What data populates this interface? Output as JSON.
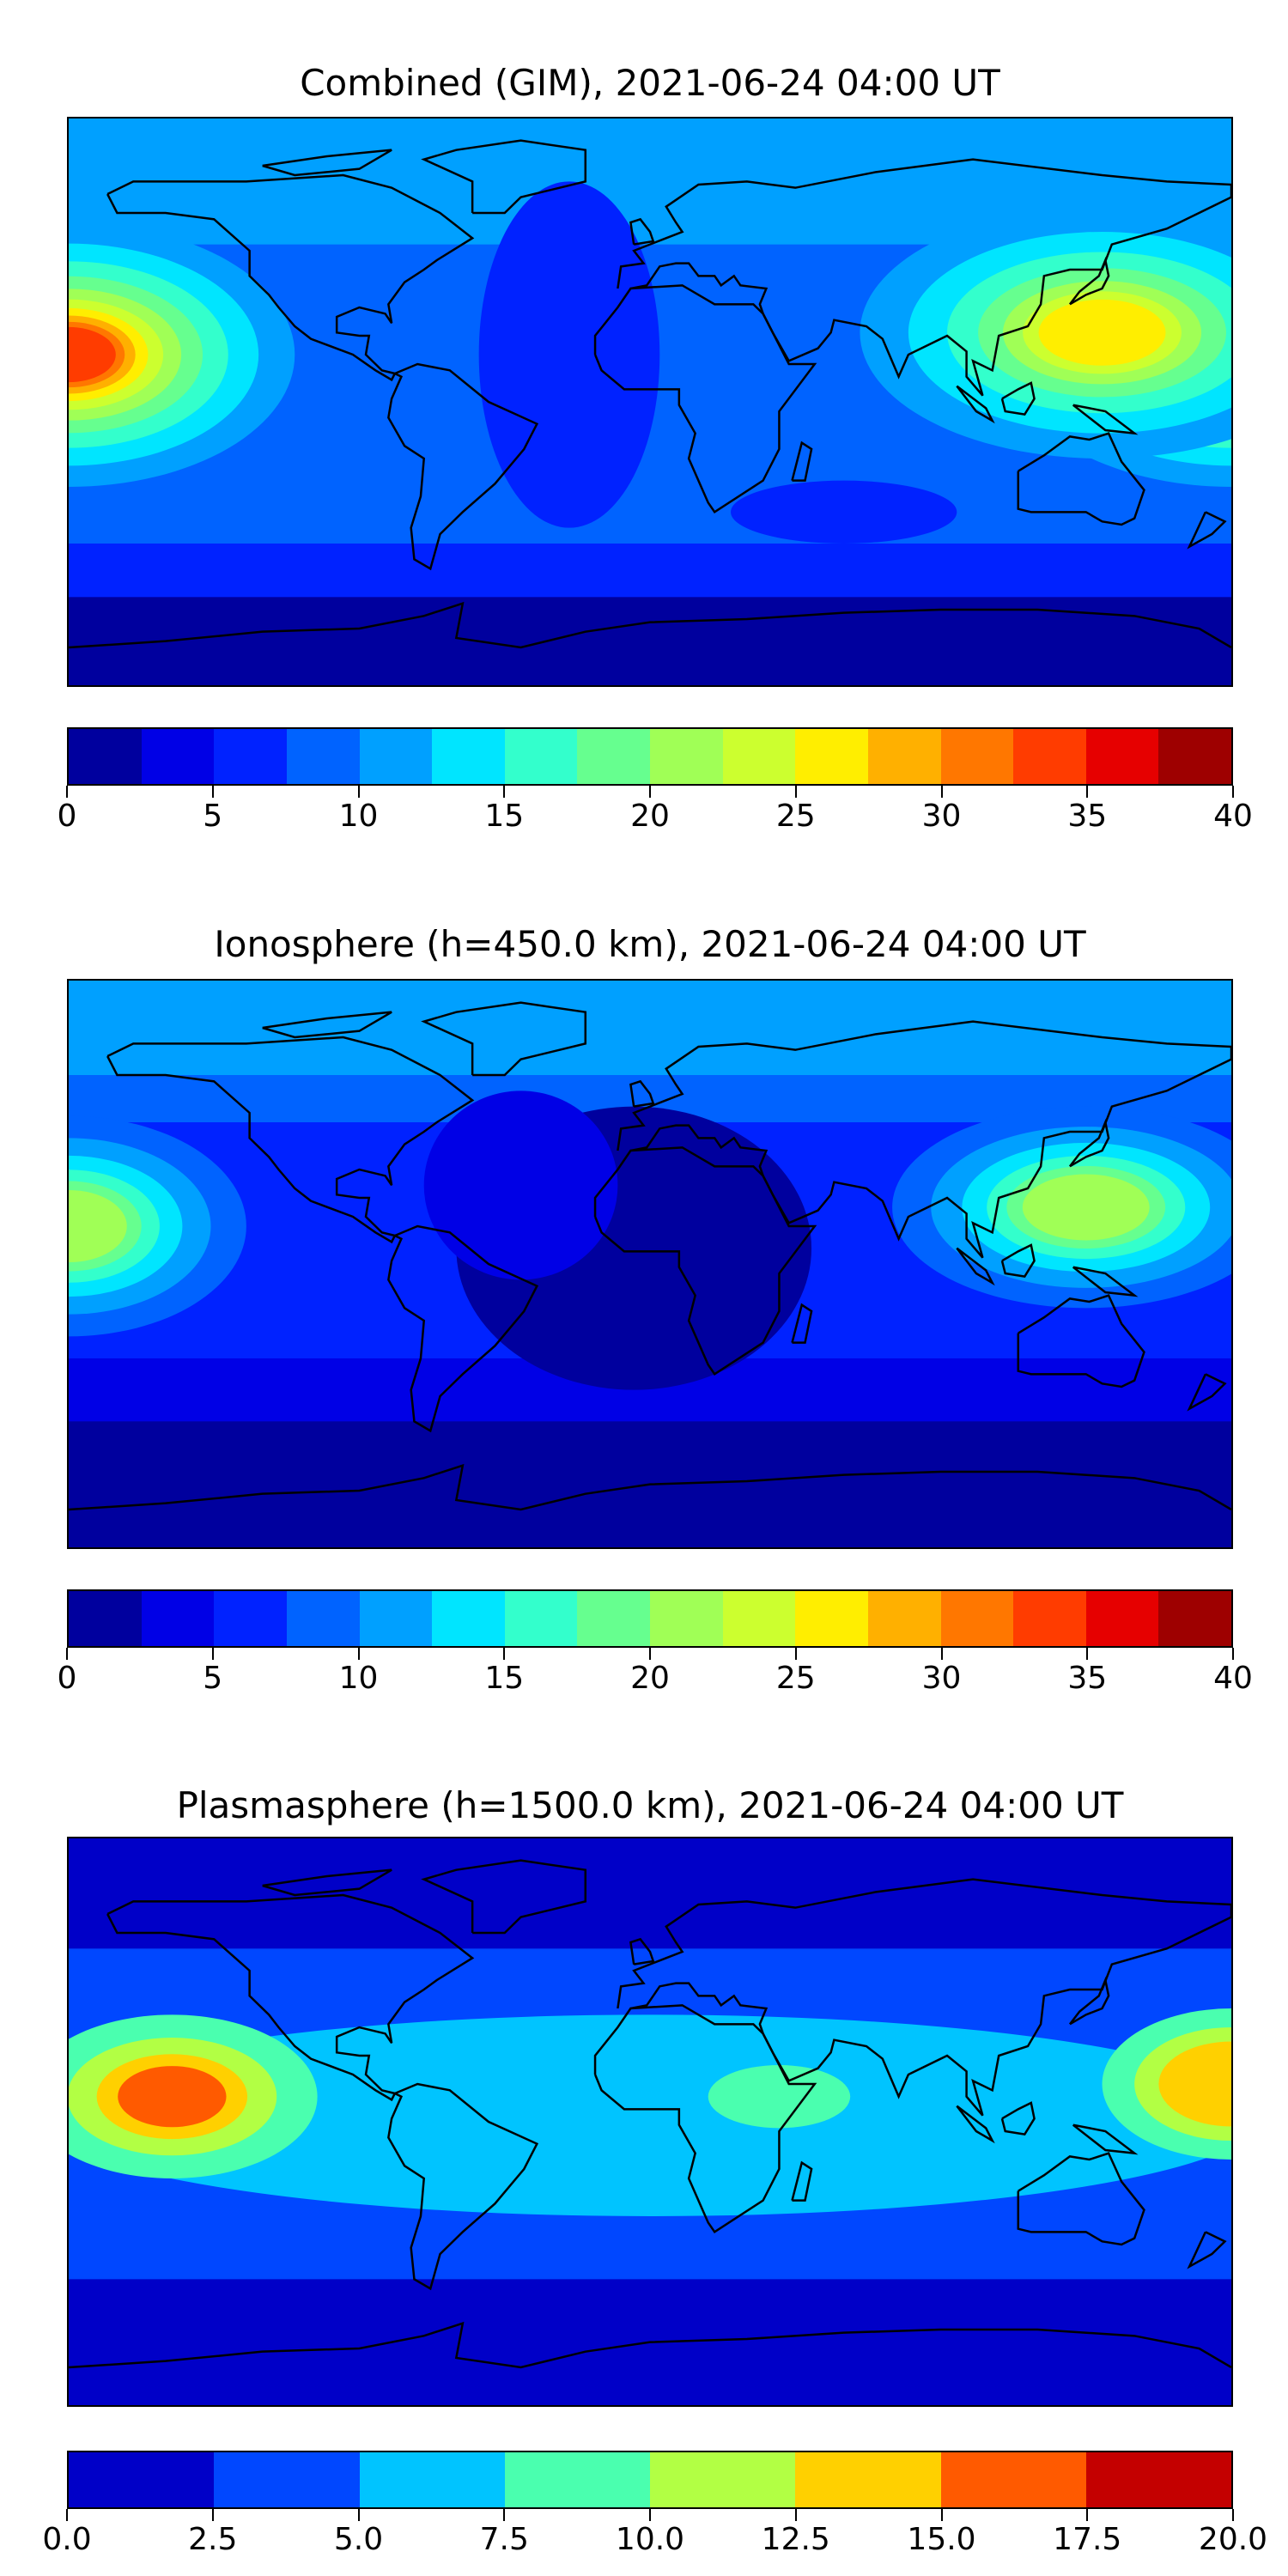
{
  "chart_data": [
    {
      "type": "heatmap",
      "title": "Combined (GIM), 2021-06-24 04:00 UT",
      "colorbar": {
        "ticks": [
          "0",
          "5",
          "10",
          "15",
          "20",
          "25",
          "30",
          "35",
          "40"
        ],
        "range": [
          0,
          40
        ],
        "levels": 16,
        "colors": [
          "#00009e",
          "#0000e6",
          "#0022ff",
          "#0063ff",
          "#00a0ff",
          "#00e5ff",
          "#33ffcc",
          "#66ff8f",
          "#a0ff56",
          "#ccff2f",
          "#ffee00",
          "#ffb000",
          "#ff7700",
          "#ff3c00",
          "#e60000",
          "#9e0000"
        ]
      },
      "features": "TEC maxima near dateline (~30-35) at low latitudes; Atlantic minimum ~5-7.5; polar south ~0-2.5"
    },
    {
      "type": "heatmap",
      "title": "Ionosphere  (h=450.0 km), 2021-06-24 04:00 UT",
      "colorbar": {
        "ticks": [
          "0",
          "5",
          "10",
          "15",
          "20",
          "25",
          "30",
          "35",
          "40"
        ],
        "range": [
          0,
          40
        ],
        "levels": 16,
        "colors": [
          "#00009e",
          "#0000e6",
          "#0022ff",
          "#0063ff",
          "#00a0ff",
          "#00e5ff",
          "#33ffcc",
          "#66ff8f",
          "#a0ff56",
          "#ccff2f",
          "#ffee00",
          "#ffb000",
          "#ff7700",
          "#ff3c00",
          "#e60000",
          "#9e0000"
        ]
      },
      "features": "Maxima ~20-22.5 over East Asia and central Pacific; south Atlantic ~0-2.5"
    },
    {
      "type": "heatmap",
      "title": "Plasmasphere (h=1500.0 km), 2021-06-24 04:00 UT",
      "colorbar": {
        "ticks": [
          "0.0",
          "2.5",
          "5.0",
          "7.5",
          "10.0",
          "12.5",
          "15.0",
          "17.5",
          "20.0"
        ],
        "range": [
          0,
          20
        ],
        "levels": 8,
        "colors": [
          "#0000c8",
          "#0047ff",
          "#00c4ff",
          "#4affaf",
          "#b2ff44",
          "#ffd000",
          "#ff5a00",
          "#c40000"
        ]
      },
      "features": "Equatorial band 5-7.5; Pacific maximum ~15-17.5; high latitudes 0-2.5"
    }
  ]
}
